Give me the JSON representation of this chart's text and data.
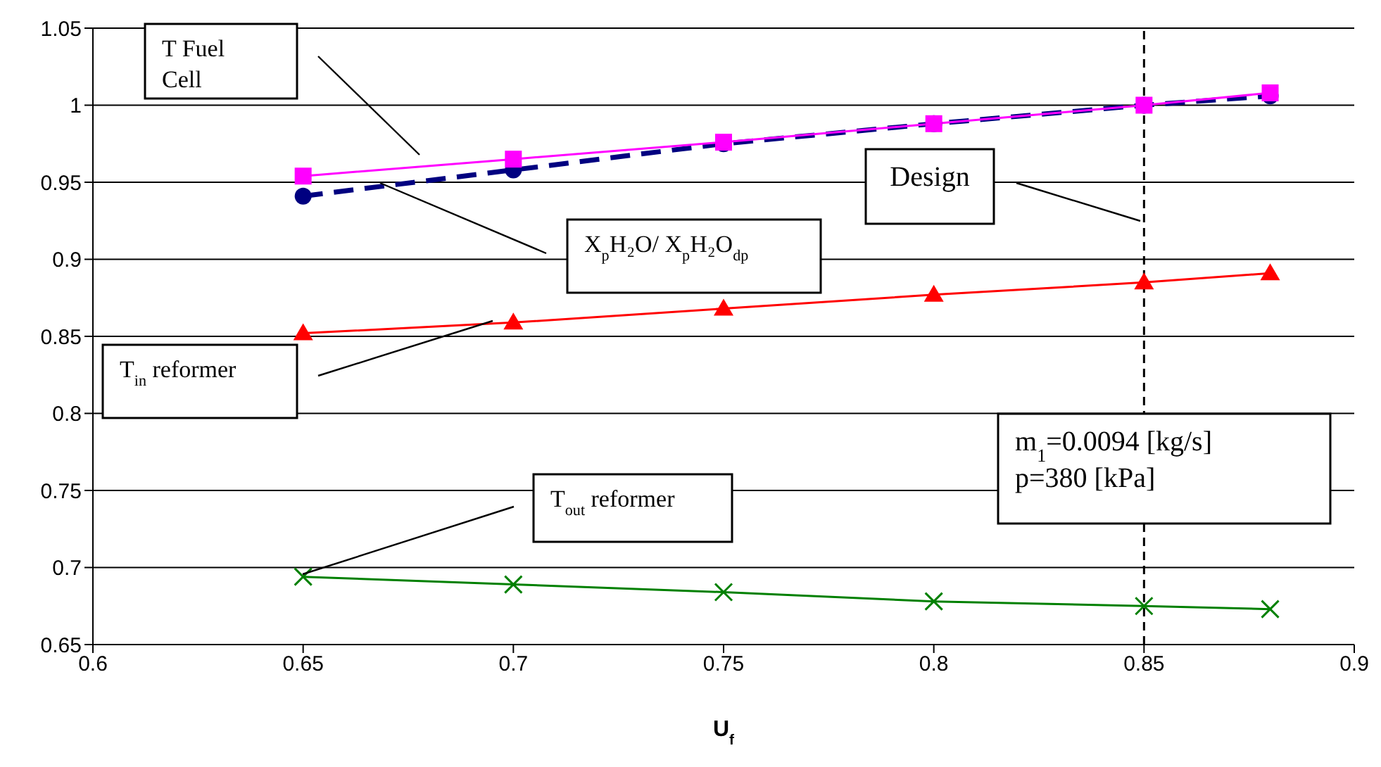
{
  "chart_data": {
    "type": "line",
    "xlabel": "U$_{f}$",
    "x": [
      0.65,
      0.7,
      0.75,
      0.8,
      0.85,
      0.88
    ],
    "series": [
      {
        "color": "#ff00ff",
        "marker": "square",
        "line_style": "solid",
        "values": [
          0.954,
          0.965,
          0.976,
          0.988,
          1.0,
          1.008
        ]
      },
      {
        "color": "#000080",
        "marker": "circle",
        "line_style": "dashed",
        "values": [
          0.941,
          0.958,
          0.975,
          0.988,
          1.0,
          1.006
        ]
      },
      {
        "color": "#ff0000",
        "marker": "triangle",
        "line_style": "solid",
        "values": [
          0.852,
          0.859,
          0.868,
          0.877,
          0.885,
          0.891
        ]
      },
      {
        "color": "#008000",
        "marker": "cross",
        "line_style": "solid",
        "values": [
          0.694,
          0.689,
          0.684,
          0.678,
          0.675,
          0.673
        ]
      }
    ],
    "xlim": [
      0.6,
      0.9
    ],
    "xticks": [
      0.6,
      0.65,
      0.7,
      0.75,
      0.8,
      0.85,
      0.9
    ],
    "ylim": [
      0.65,
      1.05
    ],
    "yticks": [
      0.65,
      0.7,
      0.75,
      0.8,
      0.85,
      0.9,
      0.95,
      1,
      1.05
    ],
    "grid": "y",
    "ref_lines": [
      {
        "axis": "x",
        "value": 0.85,
        "color": "#000000",
        "line_style": "dashed"
      }
    ],
    "annotations": [
      "T Fuel Cell",
      "X$_{p}$H₂O/ X$_{p}$H₂O$_{dp}$",
      "T$_{in}$ reformer",
      "T$_{out}$ reformer",
      "Design",
      "m$_{1}$=0.0094 [kg/s]\np=380 [kPa]"
    ]
  }
}
